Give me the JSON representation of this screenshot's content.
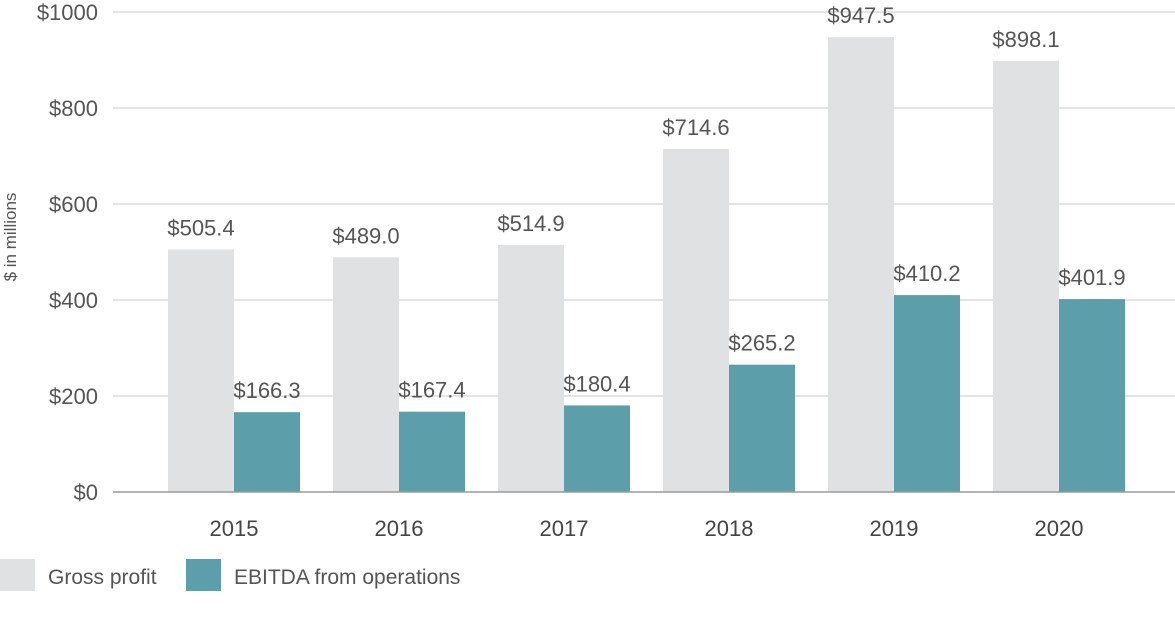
{
  "chart_data": {
    "type": "bar",
    "title": "",
    "xlabel": "",
    "ylabel": "$ in millions",
    "categories": [
      "2015",
      "2016",
      "2017",
      "2018",
      "2019",
      "2020"
    ],
    "series": [
      {
        "name": "Gross profit",
        "color": "#e0e1e2",
        "values": [
          505.4,
          489.0,
          514.9,
          714.6,
          947.5,
          898.1
        ],
        "labels": [
          "$505.4",
          "$489.0",
          "$514.9",
          "$714.6",
          "$947.5",
          "$898.1"
        ]
      },
      {
        "name": "EBITDA from operations",
        "color": "#5c9fab",
        "values": [
          166.3,
          167.4,
          180.4,
          265.2,
          410.2,
          401.9
        ],
        "labels": [
          "$166.3",
          "$167.4",
          "$180.4",
          "$265.2",
          "$410.2",
          "$401.9"
        ]
      }
    ],
    "ylim": [
      0,
      1000
    ],
    "yticks": [
      0,
      200,
      400,
      600,
      800,
      1000
    ],
    "ytick_labels": [
      "$0",
      "$200",
      "$400",
      "$600",
      "$800",
      "$1000"
    ],
    "grid": true,
    "legend_position": "bottom-left"
  }
}
